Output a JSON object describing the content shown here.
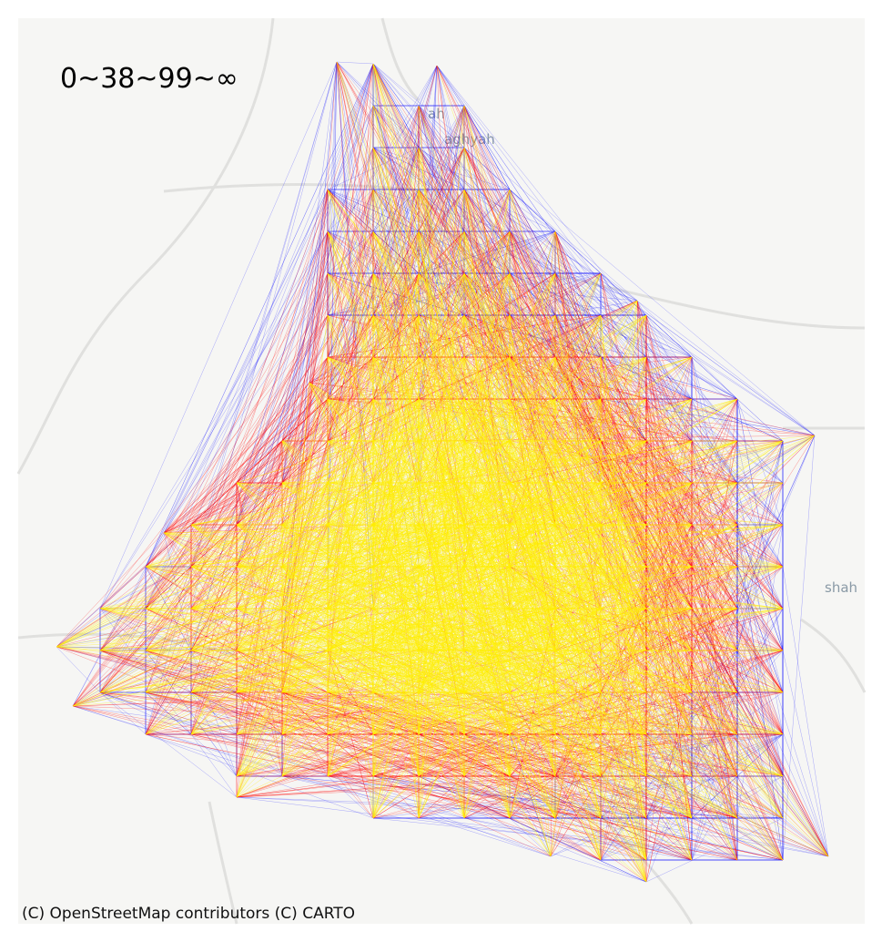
{
  "range_label": "0~38~99~∞",
  "attribution": "(C) OpenStreetMap contributors (C) CARTO",
  "basemap_labels": [
    "ah",
    "aghyah",
    "shah"
  ],
  "colors": {
    "background": "#f6f6f4",
    "road": "#e2e2e0",
    "low": "#1010ff",
    "mid": "#ff1010",
    "high": "#ffee00"
  },
  "legend": {
    "low": "0",
    "mid_low": "38",
    "mid_high": "99",
    "high": "∞"
  }
}
